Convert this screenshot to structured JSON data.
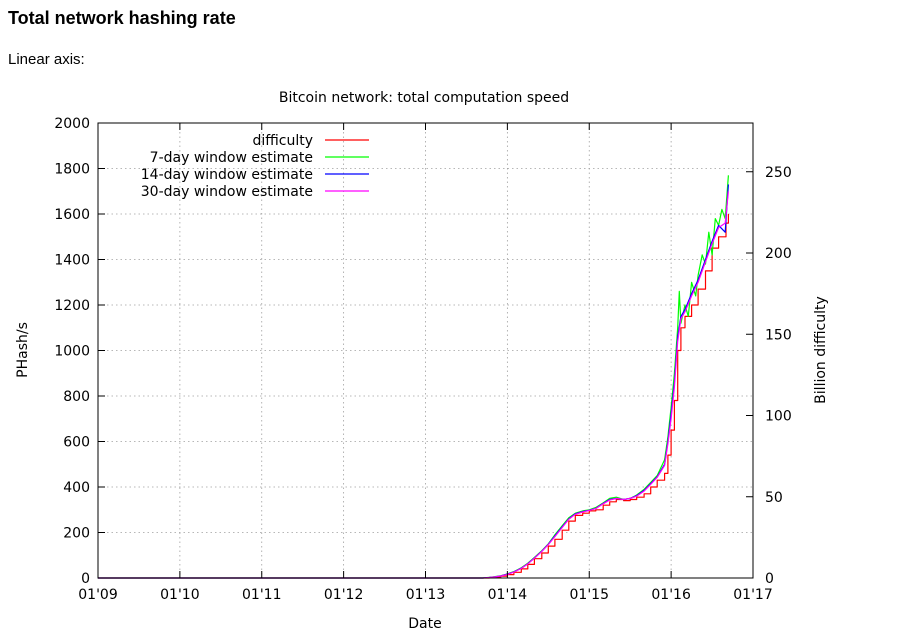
{
  "page": {
    "heading": "Total network hashing rate",
    "axis_note": "Linear axis:"
  },
  "chart_data": {
    "type": "line",
    "title": "Bitcoin network: total computation speed",
    "xlabel": "Date",
    "ylabel": "PHash/s",
    "y2label": "Billion difficulty",
    "xlim": [
      2009.0,
      2017.0
    ],
    "ylim": [
      0,
      2000
    ],
    "y2lim": [
      0,
      280
    ],
    "x_ticks": [
      "01'09",
      "01'10",
      "01'11",
      "01'12",
      "01'13",
      "01'14",
      "01'15",
      "01'16",
      "01'17"
    ],
    "y_ticks": [
      0,
      200,
      400,
      600,
      800,
      1000,
      1200,
      1400,
      1600,
      1800,
      2000
    ],
    "y2_ticks": [
      0,
      50,
      100,
      150,
      200,
      250
    ],
    "grid": true,
    "legend_position": "top-left",
    "series": [
      {
        "name": "difficulty",
        "color": "#ff0000",
        "points": [
          [
            2009.0,
            0
          ],
          [
            2013.7,
            0
          ],
          [
            2013.78,
            2
          ],
          [
            2013.85,
            4
          ],
          [
            2013.92,
            8
          ],
          [
            2014.0,
            15
          ],
          [
            2014.08,
            25
          ],
          [
            2014.17,
            40
          ],
          [
            2014.25,
            60
          ],
          [
            2014.33,
            85
          ],
          [
            2014.42,
            110
          ],
          [
            2014.5,
            140
          ],
          [
            2014.58,
            170
          ],
          [
            2014.67,
            210
          ],
          [
            2014.75,
            250
          ],
          [
            2014.83,
            275
          ],
          [
            2014.92,
            285
          ],
          [
            2015.0,
            295
          ],
          [
            2015.08,
            300
          ],
          [
            2015.17,
            320
          ],
          [
            2015.25,
            335
          ],
          [
            2015.33,
            345
          ],
          [
            2015.42,
            340
          ],
          [
            2015.5,
            345
          ],
          [
            2015.58,
            355
          ],
          [
            2015.67,
            370
          ],
          [
            2015.75,
            400
          ],
          [
            2015.83,
            430
          ],
          [
            2015.92,
            460
          ],
          [
            2015.96,
            540
          ],
          [
            2016.0,
            650
          ],
          [
            2016.04,
            780
          ],
          [
            2016.08,
            1000
          ],
          [
            2016.12,
            1100
          ],
          [
            2016.17,
            1150
          ],
          [
            2016.25,
            1200
          ],
          [
            2016.33,
            1270
          ],
          [
            2016.42,
            1350
          ],
          [
            2016.5,
            1450
          ],
          [
            2016.58,
            1500
          ],
          [
            2016.67,
            1560
          ],
          [
            2016.7,
            1600
          ]
        ]
      },
      {
        "name": "7-day window estimate",
        "color": "#00ff00",
        "points": [
          [
            2009.0,
            0
          ],
          [
            2013.7,
            0
          ],
          [
            2013.78,
            3
          ],
          [
            2013.85,
            6
          ],
          [
            2013.92,
            10
          ],
          [
            2014.0,
            18
          ],
          [
            2014.08,
            28
          ],
          [
            2014.17,
            45
          ],
          [
            2014.25,
            65
          ],
          [
            2014.33,
            90
          ],
          [
            2014.42,
            120
          ],
          [
            2014.5,
            150
          ],
          [
            2014.58,
            190
          ],
          [
            2014.67,
            230
          ],
          [
            2014.75,
            265
          ],
          [
            2014.83,
            285
          ],
          [
            2014.92,
            295
          ],
          [
            2015.0,
            300
          ],
          [
            2015.08,
            310
          ],
          [
            2015.17,
            330
          ],
          [
            2015.25,
            350
          ],
          [
            2015.33,
            355
          ],
          [
            2015.42,
            345
          ],
          [
            2015.5,
            350
          ],
          [
            2015.58,
            365
          ],
          [
            2015.67,
            390
          ],
          [
            2015.75,
            420
          ],
          [
            2015.83,
            450
          ],
          [
            2015.92,
            520
          ],
          [
            2015.96,
            620
          ],
          [
            2016.0,
            750
          ],
          [
            2016.04,
            900
          ],
          [
            2016.08,
            1100
          ],
          [
            2016.1,
            1260
          ],
          [
            2016.12,
            1120
          ],
          [
            2016.17,
            1200
          ],
          [
            2016.21,
            1150
          ],
          [
            2016.25,
            1300
          ],
          [
            2016.3,
            1240
          ],
          [
            2016.33,
            1330
          ],
          [
            2016.38,
            1420
          ],
          [
            2016.42,
            1380
          ],
          [
            2016.46,
            1520
          ],
          [
            2016.5,
            1420
          ],
          [
            2016.54,
            1580
          ],
          [
            2016.58,
            1550
          ],
          [
            2016.62,
            1620
          ],
          [
            2016.66,
            1580
          ],
          [
            2016.7,
            1770
          ]
        ]
      },
      {
        "name": "14-day window estimate",
        "color": "#0000ff",
        "points": [
          [
            2009.0,
            0
          ],
          [
            2013.7,
            0
          ],
          [
            2013.78,
            2
          ],
          [
            2013.85,
            5
          ],
          [
            2013.92,
            9
          ],
          [
            2014.0,
            17
          ],
          [
            2014.08,
            27
          ],
          [
            2014.17,
            43
          ],
          [
            2014.25,
            63
          ],
          [
            2014.33,
            88
          ],
          [
            2014.42,
            118
          ],
          [
            2014.5,
            148
          ],
          [
            2014.58,
            185
          ],
          [
            2014.67,
            225
          ],
          [
            2014.75,
            260
          ],
          [
            2014.83,
            282
          ],
          [
            2014.92,
            292
          ],
          [
            2015.0,
            298
          ],
          [
            2015.08,
            306
          ],
          [
            2015.17,
            328
          ],
          [
            2015.25,
            345
          ],
          [
            2015.33,
            350
          ],
          [
            2015.42,
            345
          ],
          [
            2015.5,
            350
          ],
          [
            2015.58,
            362
          ],
          [
            2015.67,
            385
          ],
          [
            2015.75,
            415
          ],
          [
            2015.83,
            445
          ],
          [
            2015.92,
            500
          ],
          [
            2015.96,
            600
          ],
          [
            2016.0,
            720
          ],
          [
            2016.04,
            860
          ],
          [
            2016.08,
            1060
          ],
          [
            2016.12,
            1150
          ],
          [
            2016.17,
            1180
          ],
          [
            2016.25,
            1250
          ],
          [
            2016.33,
            1310
          ],
          [
            2016.42,
            1400
          ],
          [
            2016.5,
            1480
          ],
          [
            2016.58,
            1550
          ],
          [
            2016.66,
            1520
          ],
          [
            2016.7,
            1730
          ]
        ]
      },
      {
        "name": "30-day window estimate",
        "color": "#ff00ff",
        "points": [
          [
            2009.0,
            0
          ],
          [
            2013.7,
            0
          ],
          [
            2013.78,
            2
          ],
          [
            2013.85,
            5
          ],
          [
            2013.92,
            9
          ],
          [
            2014.0,
            16
          ],
          [
            2014.08,
            26
          ],
          [
            2014.17,
            42
          ],
          [
            2014.25,
            62
          ],
          [
            2014.33,
            87
          ],
          [
            2014.42,
            117
          ],
          [
            2014.5,
            147
          ],
          [
            2014.58,
            182
          ],
          [
            2014.67,
            222
          ],
          [
            2014.75,
            258
          ],
          [
            2014.83,
            280
          ],
          [
            2014.92,
            290
          ],
          [
            2015.0,
            297
          ],
          [
            2015.08,
            305
          ],
          [
            2015.17,
            326
          ],
          [
            2015.25,
            343
          ],
          [
            2015.33,
            350
          ],
          [
            2015.42,
            345
          ],
          [
            2015.5,
            350
          ],
          [
            2015.58,
            360
          ],
          [
            2015.67,
            382
          ],
          [
            2015.75,
            412
          ],
          [
            2015.83,
            442
          ],
          [
            2015.92,
            495
          ],
          [
            2015.96,
            590
          ],
          [
            2016.0,
            700
          ],
          [
            2016.04,
            840
          ],
          [
            2016.08,
            1040
          ],
          [
            2016.12,
            1140
          ],
          [
            2016.17,
            1170
          ],
          [
            2016.25,
            1240
          ],
          [
            2016.33,
            1300
          ],
          [
            2016.42,
            1390
          ],
          [
            2016.5,
            1470
          ],
          [
            2016.58,
            1540
          ],
          [
            2016.66,
            1560
          ],
          [
            2016.7,
            1700
          ]
        ]
      }
    ]
  }
}
